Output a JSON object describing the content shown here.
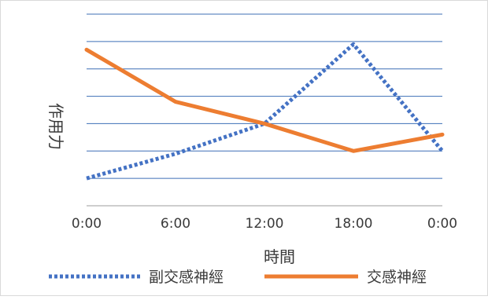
{
  "chart_data": {
    "type": "line",
    "title": "",
    "xlabel": "時間",
    "ylabel": "作用力",
    "categories": [
      "0:00",
      "6:00",
      "12:00",
      "18:00",
      "0:00"
    ],
    "ylim": [
      0,
      7
    ],
    "grid": true,
    "y_tick_labels": false,
    "legend_position": "bottom",
    "series": [
      {
        "name": "副交感神經",
        "values": [
          1.0,
          1.9,
          3.0,
          5.9,
          2.0
        ],
        "color": "#4472C4",
        "style": "dotted"
      },
      {
        "name": "交感神經",
        "values": [
          5.7,
          3.8,
          3.0,
          2.0,
          2.6
        ],
        "color": "#ED7D31",
        "style": "solid"
      }
    ]
  }
}
